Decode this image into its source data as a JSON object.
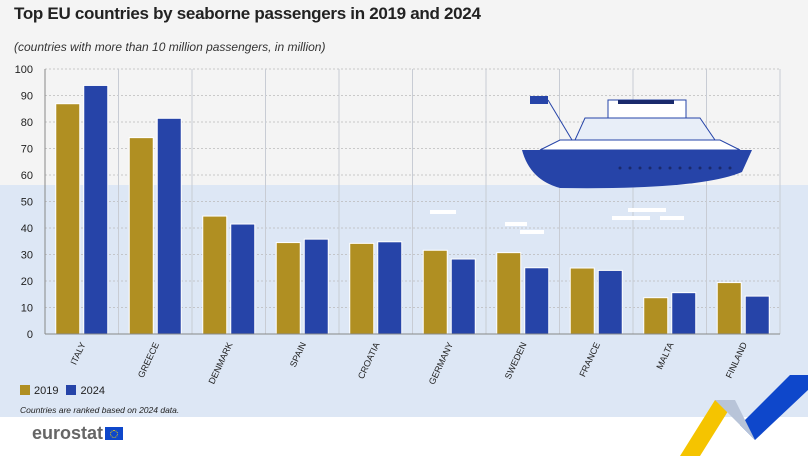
{
  "title": "Top EU countries by seaborne passengers in 2019 and 2024",
  "subtitle": "(countries with more than 10 million passengers, in million)",
  "note": "Countries are ranked based on 2024 data.",
  "logo": "eurostat",
  "colors": {
    "2019": "#b08f22",
    "2024": "#2644a8",
    "sea": "#dde7f5",
    "sky": "#f4f4f4"
  },
  "chart_data": {
    "type": "bar",
    "title": "Top EU countries by seaborne passengers in 2019 and 2024",
    "subtitle": "(countries with more than 10 million passengers, in million)",
    "categories": [
      "ITALY",
      "GREECE",
      "DENMARK",
      "SPAIN",
      "CROATIA",
      "GERMANY",
      "SWEDEN",
      "FRANCE",
      "MALTA",
      "FINLAND"
    ],
    "series": [
      {
        "name": "2019",
        "values": [
          86.9,
          74.1,
          44.5,
          34.5,
          34.2,
          31.6,
          30.7,
          24.9,
          13.7,
          19.4
        ]
      },
      {
        "name": "2024",
        "values": [
          93.8,
          81.4,
          41.5,
          35.8,
          34.8,
          28.3,
          25.0,
          24.0,
          15.6,
          14.3
        ]
      }
    ],
    "ylim": [
      0,
      100
    ],
    "yticks": [
      0,
      10,
      20,
      30,
      40,
      50,
      60,
      70,
      80,
      90,
      100
    ],
    "grid": true,
    "legend": "bottom-left"
  }
}
